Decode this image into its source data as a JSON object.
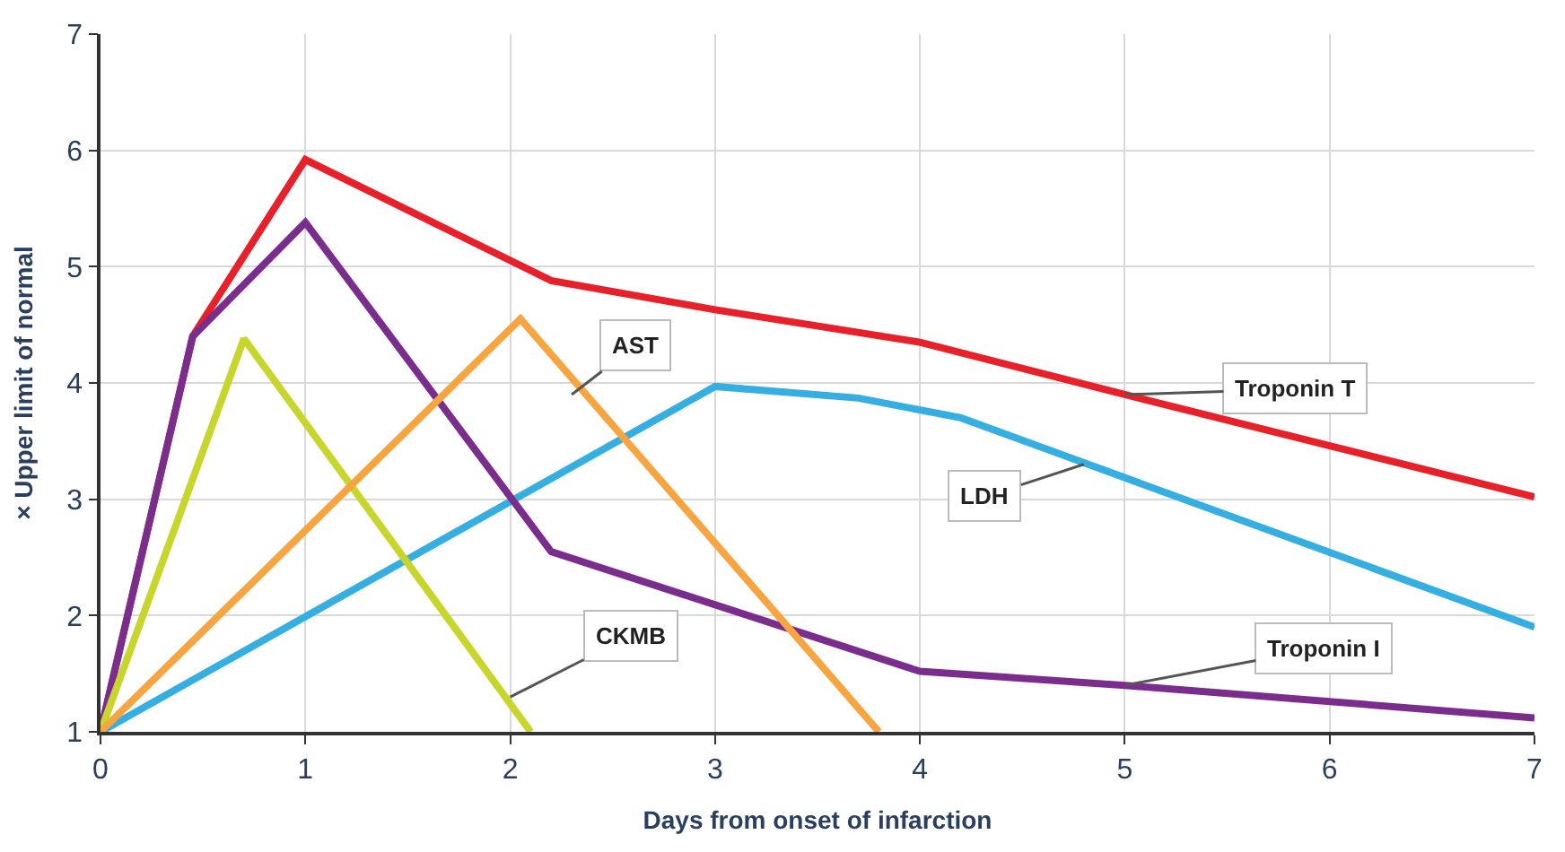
{
  "chart_data": {
    "type": "line",
    "xlabel": "Days from onset of infarction",
    "ylabel": "× Upper limit of normal",
    "xlim": [
      0,
      7
    ],
    "ylim": [
      1,
      7
    ],
    "xticks": [
      0,
      1,
      2,
      3,
      4,
      5,
      6,
      7
    ],
    "yticks": [
      1,
      2,
      3,
      4,
      5,
      6,
      7
    ],
    "grid": true,
    "marker": "none",
    "line_style": "solid",
    "series": [
      {
        "color": "#e8202a",
        "x": [
          0,
          0.45,
          1,
          2.2,
          3,
          4,
          5,
          7
        ],
        "values": [
          1,
          4.4,
          5.92,
          4.88,
          4.63,
          4.35,
          3.9,
          3.02
        ]
      },
      {
        "color": "#35aee2",
        "x": [
          0,
          3,
          3.7,
          4.2,
          7
        ],
        "values": [
          1,
          3.97,
          3.87,
          3.7,
          1.9
        ]
      },
      {
        "color": "#7b2d8e",
        "x": [
          0,
          0.45,
          1,
          2.2,
          4,
          5,
          7
        ],
        "values": [
          1,
          4.4,
          5.38,
          2.55,
          1.52,
          1.4,
          1.12
        ]
      },
      {
        "color": "#c8d62b",
        "x": [
          0,
          0.7,
          2.1
        ],
        "values": [
          1,
          4.38,
          1
        ]
      },
      {
        "color": "#f7a540",
        "x": [
          0,
          2.05,
          3.8
        ],
        "values": [
          1,
          4.55,
          1
        ]
      }
    ],
    "annotations": [
      {
        "text": "AST",
        "x": 2.3,
        "y": 3.9
      },
      {
        "text": "Troponin T",
        "x": 5,
        "y": 3.9
      },
      {
        "text": "LDH",
        "x": 4.8,
        "y": 3.3
      },
      {
        "text": "CKMB",
        "x": 2.0,
        "y": 1.3
      },
      {
        "text": "Troponin I",
        "x": 5,
        "y": 1.4
      }
    ]
  }
}
